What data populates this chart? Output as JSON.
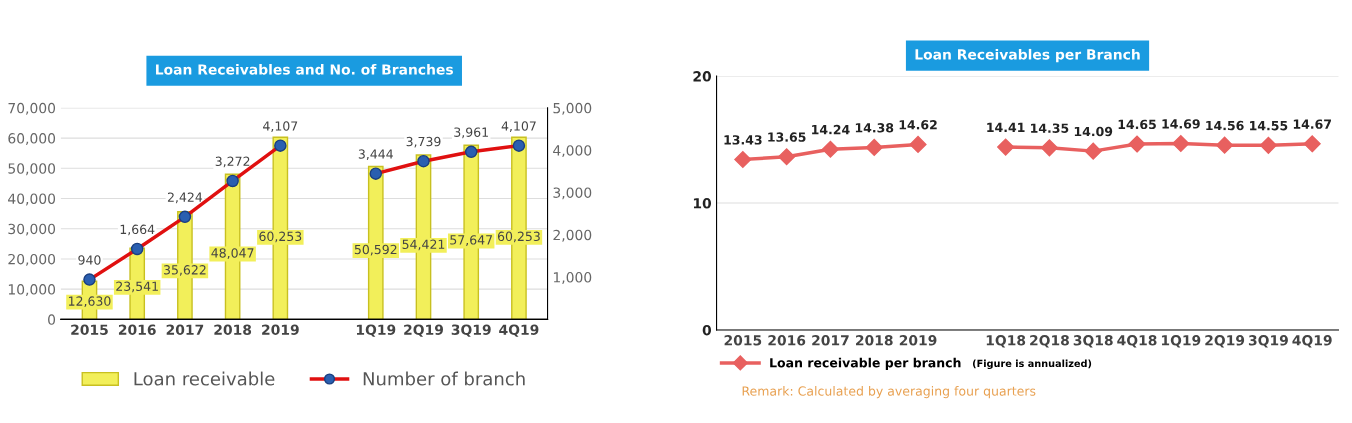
{
  "chart_data": [
    {
      "type": "bar",
      "title": "Loan Receivables and No. of Branches",
      "categories": [
        "2015",
        "2016",
        "2017",
        "2018",
        "2019",
        null,
        "1Q19",
        "2Q19",
        "3Q19",
        "4Q19"
      ],
      "series": [
        {
          "name": "Loan receivable",
          "type": "bar",
          "color": "#f2ef5a",
          "values": [
            12630,
            23541,
            35622,
            48047,
            60253,
            null,
            50592,
            54421,
            57647,
            60253
          ],
          "value_labels": [
            "12,630",
            "23,541",
            "35,622",
            "48,047",
            "60,253",
            null,
            "50,592",
            "54,421",
            "57,647",
            "60,253"
          ]
        },
        {
          "name": "Number of branch",
          "type": "line",
          "axis": "y2",
          "color": "#e01010",
          "marker": "circle",
          "values": [
            940,
            1664,
            2424,
            3272,
            4107,
            null,
            3444,
            3739,
            3961,
            4107
          ],
          "value_labels": [
            "940",
            "1,664",
            "2,424",
            "3,272",
            "4,107",
            null,
            "3,444",
            "3,739",
            "3,961",
            "4,107"
          ]
        }
      ],
      "ylim": [
        0,
        70000
      ],
      "yticks": [
        {
          "value": 0,
          "label": "0"
        },
        {
          "value": 10000,
          "label": "10,000"
        },
        {
          "value": 20000,
          "label": "20,000"
        },
        {
          "value": 30000,
          "label": "30,000"
        },
        {
          "value": 40000,
          "label": "40,000"
        },
        {
          "value": 50000,
          "label": "50,000"
        },
        {
          "value": 60000,
          "label": "60,000"
        },
        {
          "value": 70000,
          "label": "70,000"
        }
      ],
      "y2lim": [
        0,
        5000
      ],
      "y2ticks": [
        {
          "value": 1000,
          "label": "1,000"
        },
        {
          "value": 2000,
          "label": "2,000"
        },
        {
          "value": 3000,
          "label": "3,000"
        },
        {
          "value": 4000,
          "label": "4,000"
        },
        {
          "value": 5000,
          "label": "5,000"
        }
      ],
      "grid": "y",
      "legend": "bottom"
    },
    {
      "type": "line",
      "title": "Loan Receivables per Branch",
      "categories": [
        "2015",
        "2016",
        "2017",
        "2018",
        "2019",
        null,
        "1Q18",
        "2Q18",
        "3Q18",
        "4Q18",
        "1Q19",
        "2Q19",
        "3Q19",
        "4Q19"
      ],
      "series": [
        {
          "name": "Loan receivable per branch",
          "color": "#e8605f",
          "values": [
            13.43,
            13.65,
            14.24,
            14.38,
            14.62,
            null,
            14.41,
            14.35,
            14.09,
            14.65,
            14.69,
            14.56,
            14.55,
            14.67
          ]
        }
      ],
      "ylim": [
        0,
        20
      ],
      "yticks": [
        0,
        10,
        20
      ],
      "marker": "diamond",
      "annotations": [
        "(Figure is annualized)",
        "Remark: Calculated by averaging four quarters"
      ],
      "data_labels": true,
      "grid": "y",
      "legend": "bottom"
    }
  ]
}
